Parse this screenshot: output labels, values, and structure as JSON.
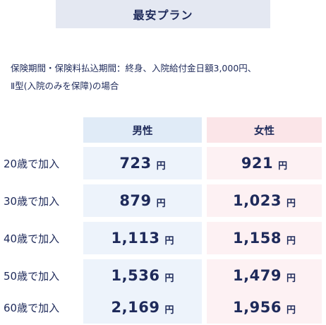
{
  "title": "最安プラン",
  "description": {
    "line1": "保険期間・保険料払込期間：終身、入院給付金日額3,000円、",
    "line2": "Ⅱ型(入院のみを保障)の場合"
  },
  "table": {
    "headers": {
      "male": "男性",
      "female": "女性"
    },
    "unit": "円",
    "rows": [
      {
        "label": "20歳で加入",
        "male": "723",
        "female": "921"
      },
      {
        "label": "30歳で加入",
        "male": "879",
        "female": "1,023"
      },
      {
        "label": "40歳で加入",
        "male": "1,113",
        "female": "1,158"
      },
      {
        "label": "50歳で加入",
        "male": "1,536",
        "female": "1,479"
      },
      {
        "label": "60歳で加入",
        "male": "2,169",
        "female": "1,956"
      }
    ]
  },
  "colors": {
    "text": "#1e2a5a",
    "title_bg": "#e4e8f2",
    "male_header_bg": "#e0ebf7",
    "male_cell_bg": "#edf3fb",
    "female_header_bg": "#fbe5e8",
    "female_cell_bg": "#fdf1f3"
  }
}
